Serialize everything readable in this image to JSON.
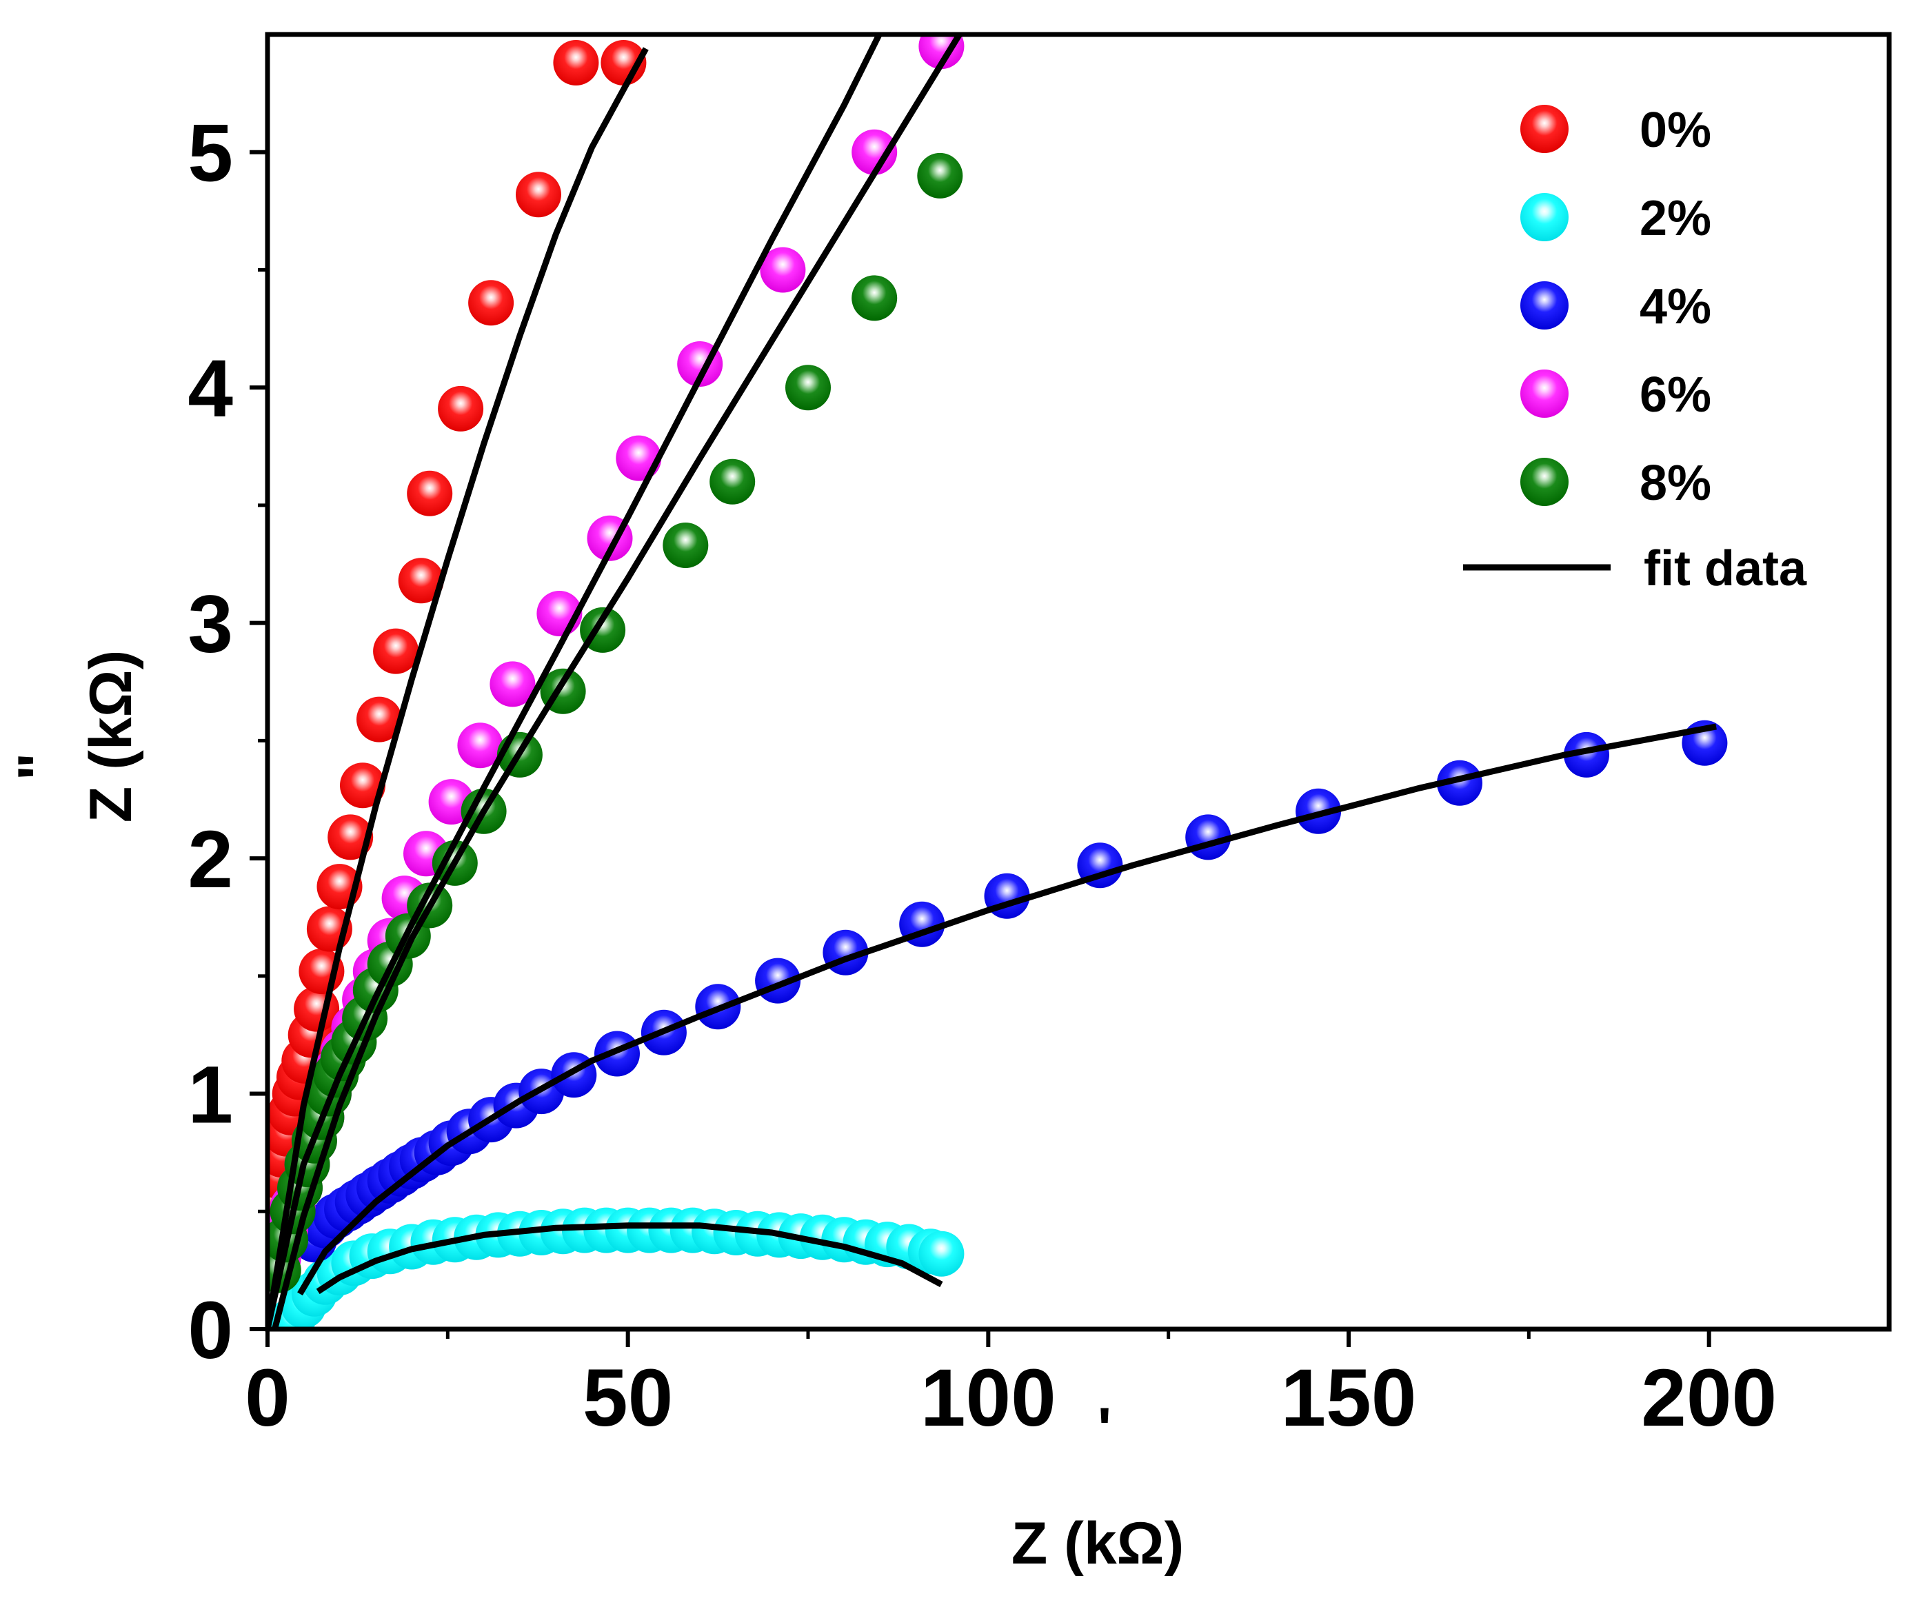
{
  "chart_data": {
    "type": "scatter",
    "title": "",
    "xlabel": "Z' (kΩ)",
    "ylabel": "Z'' (kΩ)",
    "xlabel_text": "Z  (kΩ)",
    "xlabel_prime": "'",
    "ylabel_text": "Z  (kΩ)",
    "ylabel_prime": "\"",
    "xlim": [
      0,
      225
    ],
    "ylim": [
      0,
      5.5
    ],
    "xticks": [
      0,
      50,
      100,
      150,
      200
    ],
    "yticks": [
      0,
      1,
      2,
      3,
      4,
      5
    ],
    "xtick_labels": [
      "0",
      "50",
      "100",
      "150",
      "200"
    ],
    "ytick_labels": [
      "0",
      "1",
      "2",
      "3",
      "4",
      "5"
    ],
    "legend_position": "top-right",
    "series": [
      {
        "name": "0%",
        "color": "#ff0000",
        "x": [
          0.5,
          1.0,
          1.5,
          2.0,
          2.6,
          3.2,
          3.8,
          4.4,
          5.1,
          6.0,
          6.8,
          7.5,
          8.6,
          10.0,
          11.5,
          13.2,
          15.5,
          17.8,
          21.3,
          22.5,
          26.8,
          31.0,
          37.6,
          42.8,
          49.4
        ],
        "y": [
          0.45,
          0.55,
          0.65,
          0.74,
          0.83,
          0.92,
          1.0,
          1.07,
          1.14,
          1.25,
          1.36,
          1.52,
          1.7,
          1.88,
          2.09,
          2.31,
          2.59,
          2.88,
          3.18,
          3.55,
          3.91,
          4.36,
          4.82,
          5.38,
          5.38
        ]
      },
      {
        "name": "2%",
        "color": "#00ffff",
        "x": [
          3.5,
          5.0,
          6.5,
          8.0,
          10.0,
          12.0,
          14.5,
          17.0,
          20.0,
          23.0,
          26.0,
          29.0,
          32.0,
          35.0,
          38.0,
          41.0,
          44.0,
          47.0,
          50.0,
          53.0,
          56.0,
          59.0,
          62.0,
          65.0,
          68.0,
          71.0,
          74.0,
          77.0,
          80.0,
          83.0,
          86.0,
          89.0,
          92.0,
          93.5
        ],
        "y": [
          0.04,
          0.1,
          0.15,
          0.2,
          0.24,
          0.28,
          0.31,
          0.33,
          0.35,
          0.37,
          0.38,
          0.39,
          0.4,
          0.405,
          0.41,
          0.415,
          0.42,
          0.42,
          0.42,
          0.42,
          0.42,
          0.42,
          0.415,
          0.41,
          0.405,
          0.4,
          0.395,
          0.39,
          0.38,
          0.37,
          0.36,
          0.35,
          0.33,
          0.32
        ]
      },
      {
        "name": "4%",
        "color": "#0000ff",
        "x": [
          6.5,
          8.0,
          9.5,
          11.0,
          12.5,
          14.0,
          15.5,
          17.0,
          18.5,
          20.0,
          21.5,
          23.5,
          25.5,
          28.0,
          31.0,
          34.5,
          38.0,
          42.5,
          48.5,
          55.0,
          62.5,
          70.8,
          80.2,
          90.8,
          102.6,
          115.5,
          130.5,
          145.8,
          165.4,
          183.0,
          199.4
        ],
        "y": [
          0.38,
          0.44,
          0.48,
          0.51,
          0.54,
          0.57,
          0.6,
          0.63,
          0.66,
          0.69,
          0.72,
          0.75,
          0.79,
          0.84,
          0.89,
          0.95,
          1.01,
          1.08,
          1.17,
          1.26,
          1.37,
          1.48,
          1.6,
          1.72,
          1.84,
          1.97,
          2.09,
          2.2,
          2.32,
          2.44,
          2.49
        ]
      },
      {
        "name": "6%",
        "color": "#ff00ff",
        "x": [
          1.5,
          2.5,
          3.5,
          4.5,
          5.5,
          6.5,
          7.5,
          8.5,
          9.5,
          10.5,
          12.0,
          13.5,
          15.0,
          17.0,
          19.0,
          22.0,
          25.5,
          29.5,
          34.0,
          40.5,
          47.5,
          51.5,
          60.0,
          71.5,
          84.2,
          93.5
        ],
        "y": [
          0.3,
          0.42,
          0.52,
          0.6,
          0.7,
          0.8,
          0.9,
          1.0,
          1.1,
          1.18,
          1.28,
          1.4,
          1.52,
          1.65,
          1.83,
          2.02,
          2.24,
          2.48,
          2.74,
          3.04,
          3.36,
          3.7,
          4.1,
          4.5,
          5.0,
          5.45
        ]
      },
      {
        "name": "8%",
        "color": "#008000",
        "x": [
          1.5,
          2.5,
          3.5,
          4.5,
          5.5,
          6.5,
          7.5,
          8.5,
          9.5,
          10.5,
          12.0,
          13.5,
          15.0,
          17.0,
          19.5,
          22.5,
          26.0,
          30.0,
          35.0,
          41.0,
          46.5,
          58.0,
          64.5,
          75.0,
          84.2,
          93.3
        ],
        "y": [
          0.25,
          0.38,
          0.5,
          0.6,
          0.7,
          0.8,
          0.9,
          1.0,
          1.08,
          1.15,
          1.22,
          1.32,
          1.44,
          1.55,
          1.67,
          1.8,
          1.98,
          2.2,
          2.44,
          2.71,
          2.97,
          3.33,
          3.6,
          4.0,
          4.38,
          4.9
        ]
      }
    ],
    "fits": [
      {
        "name": "fit 0%",
        "x": [
          0,
          5,
          10,
          15,
          20,
          25,
          30,
          35,
          40,
          45,
          52.5
        ],
        "y": [
          0.0,
          0.95,
          1.62,
          2.22,
          2.76,
          3.27,
          3.76,
          4.22,
          4.65,
          5.02,
          5.44
        ]
      },
      {
        "name": "fit 6%",
        "x": [
          0,
          5,
          10,
          15,
          20,
          30,
          40,
          50,
          60,
          70,
          80,
          86.5
        ],
        "y": [
          0.0,
          0.7,
          1.08,
          1.41,
          1.72,
          2.3,
          2.87,
          3.45,
          4.04,
          4.63,
          5.2,
          5.6
        ]
      },
      {
        "name": "fit 8%",
        "x": [
          1,
          5,
          10,
          15,
          20,
          30,
          40,
          50,
          60,
          70,
          80,
          90,
          96
        ],
        "y": [
          0.0,
          0.48,
          0.95,
          1.33,
          1.66,
          2.2,
          2.7,
          3.19,
          3.7,
          4.2,
          4.7,
          5.2,
          5.5
        ]
      },
      {
        "name": "fit 4%",
        "x": [
          4.5,
          8,
          15,
          25,
          35,
          45,
          60,
          80,
          100,
          120,
          140,
          160,
          180,
          201
        ],
        "y": [
          0.15,
          0.33,
          0.54,
          0.78,
          0.97,
          1.14,
          1.33,
          1.57,
          1.78,
          1.97,
          2.14,
          2.3,
          2.44,
          2.56
        ]
      },
      {
        "name": "fit 2%",
        "x": [
          7,
          10,
          15,
          20,
          30,
          40,
          50,
          60,
          70,
          80,
          88,
          93.5
        ],
        "y": [
          0.16,
          0.22,
          0.29,
          0.34,
          0.4,
          0.43,
          0.44,
          0.44,
          0.41,
          0.35,
          0.28,
          0.19
        ]
      }
    ],
    "fit_label": "fit data"
  }
}
